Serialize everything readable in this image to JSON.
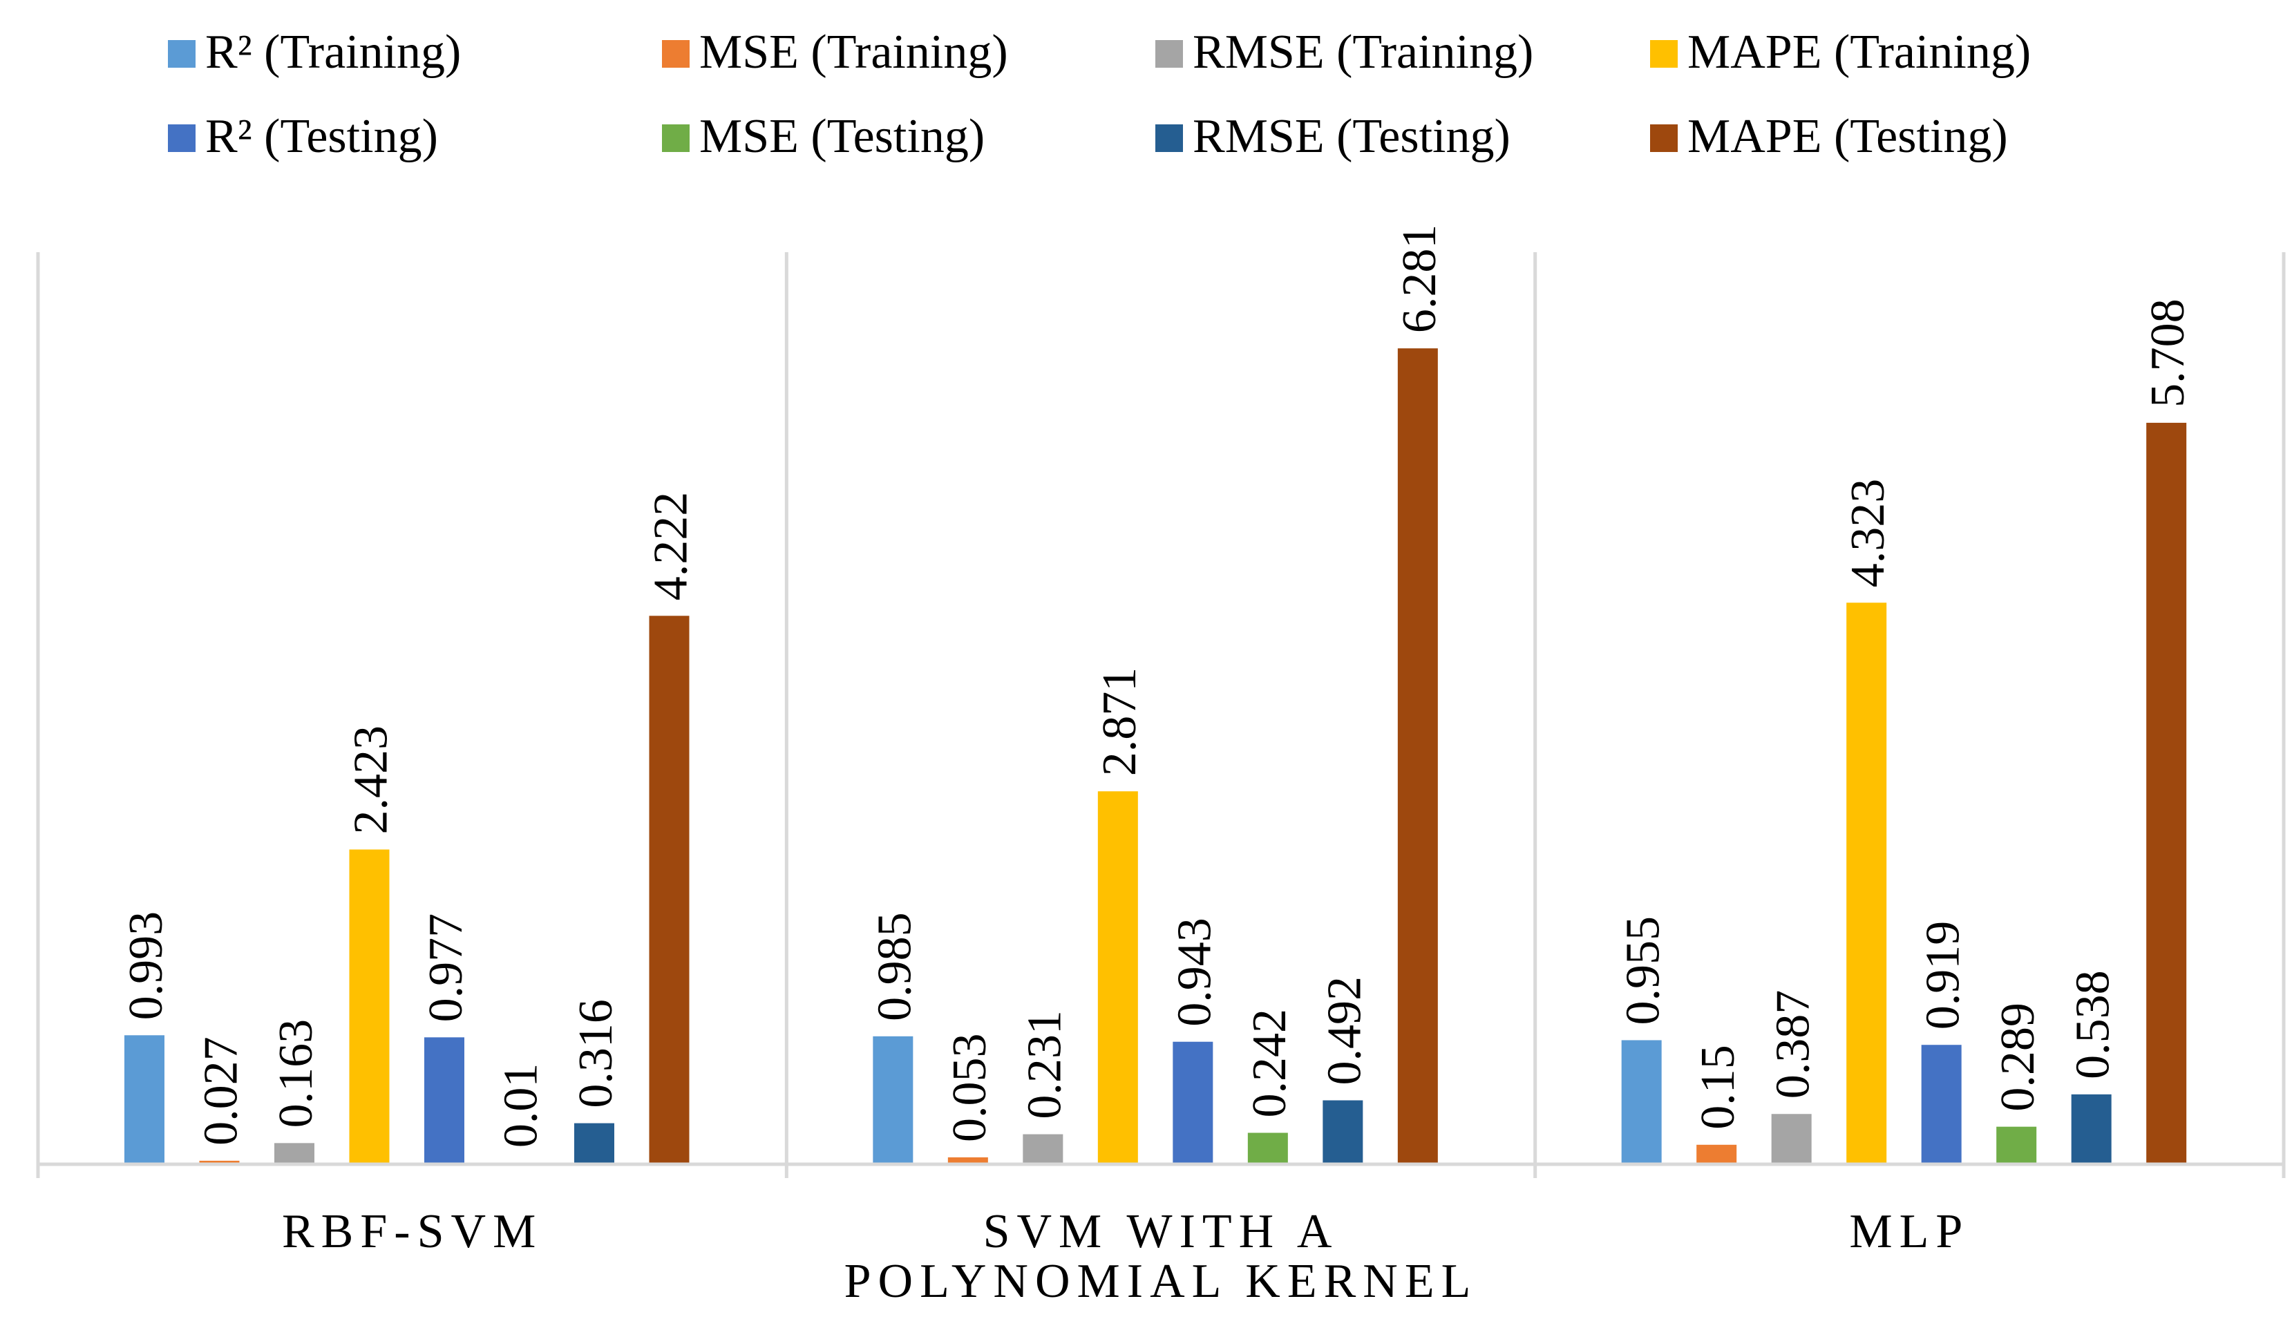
{
  "chart_data": {
    "type": "bar",
    "title": "",
    "xlabel": "",
    "ylabel": "",
    "ylim": [
      0,
      7
    ],
    "grid": false,
    "legend_position": "top",
    "categories": [
      [
        "RBF-SVM"
      ],
      [
        "SVM WITH A",
        "POLYNOMIAL KERNEL"
      ],
      [
        "MLP"
      ]
    ],
    "series": [
      {
        "name": "R² (Training)",
        "color": "#5B9BD5",
        "values": [
          0.993,
          0.985,
          0.955
        ],
        "labels": [
          "0.993",
          "0.985",
          "0.955"
        ]
      },
      {
        "name": "MSE (Training)",
        "color": "#ED7D31",
        "values": [
          0.027,
          0.053,
          0.15
        ],
        "labels": [
          "0.027",
          "0.053",
          "0.15"
        ]
      },
      {
        "name": "RMSE (Training)",
        "color": "#A5A5A5",
        "values": [
          0.163,
          0.231,
          0.387
        ],
        "labels": [
          "0.163",
          "0.231",
          "0.387"
        ]
      },
      {
        "name": "MAPE (Training)",
        "color": "#FFC000",
        "values": [
          2.423,
          2.871,
          4.323
        ],
        "labels": [
          "2.423",
          "2.871",
          "4.323"
        ]
      },
      {
        "name": "R² (Testing)",
        "color": "#4472C4",
        "values": [
          0.977,
          0.943,
          0.919
        ],
        "labels": [
          "0.977",
          "0.943",
          "0.919"
        ]
      },
      {
        "name": "MSE (Testing)",
        "color": "#70AD47",
        "values": [
          0.01,
          0.242,
          0.289
        ],
        "labels": [
          "0.01",
          "0.242",
          "0.289"
        ]
      },
      {
        "name": "RMSE (Testing)",
        "color": "#255E91",
        "values": [
          0.316,
          0.492,
          0.538
        ],
        "labels": [
          "0.316",
          "0.492",
          "0.538"
        ]
      },
      {
        "name": "MAPE (Testing)",
        "color": "#9E480E",
        "values": [
          4.222,
          6.281,
          5.708
        ],
        "labels": [
          "4.222",
          "6.281",
          "5.708"
        ]
      }
    ]
  }
}
